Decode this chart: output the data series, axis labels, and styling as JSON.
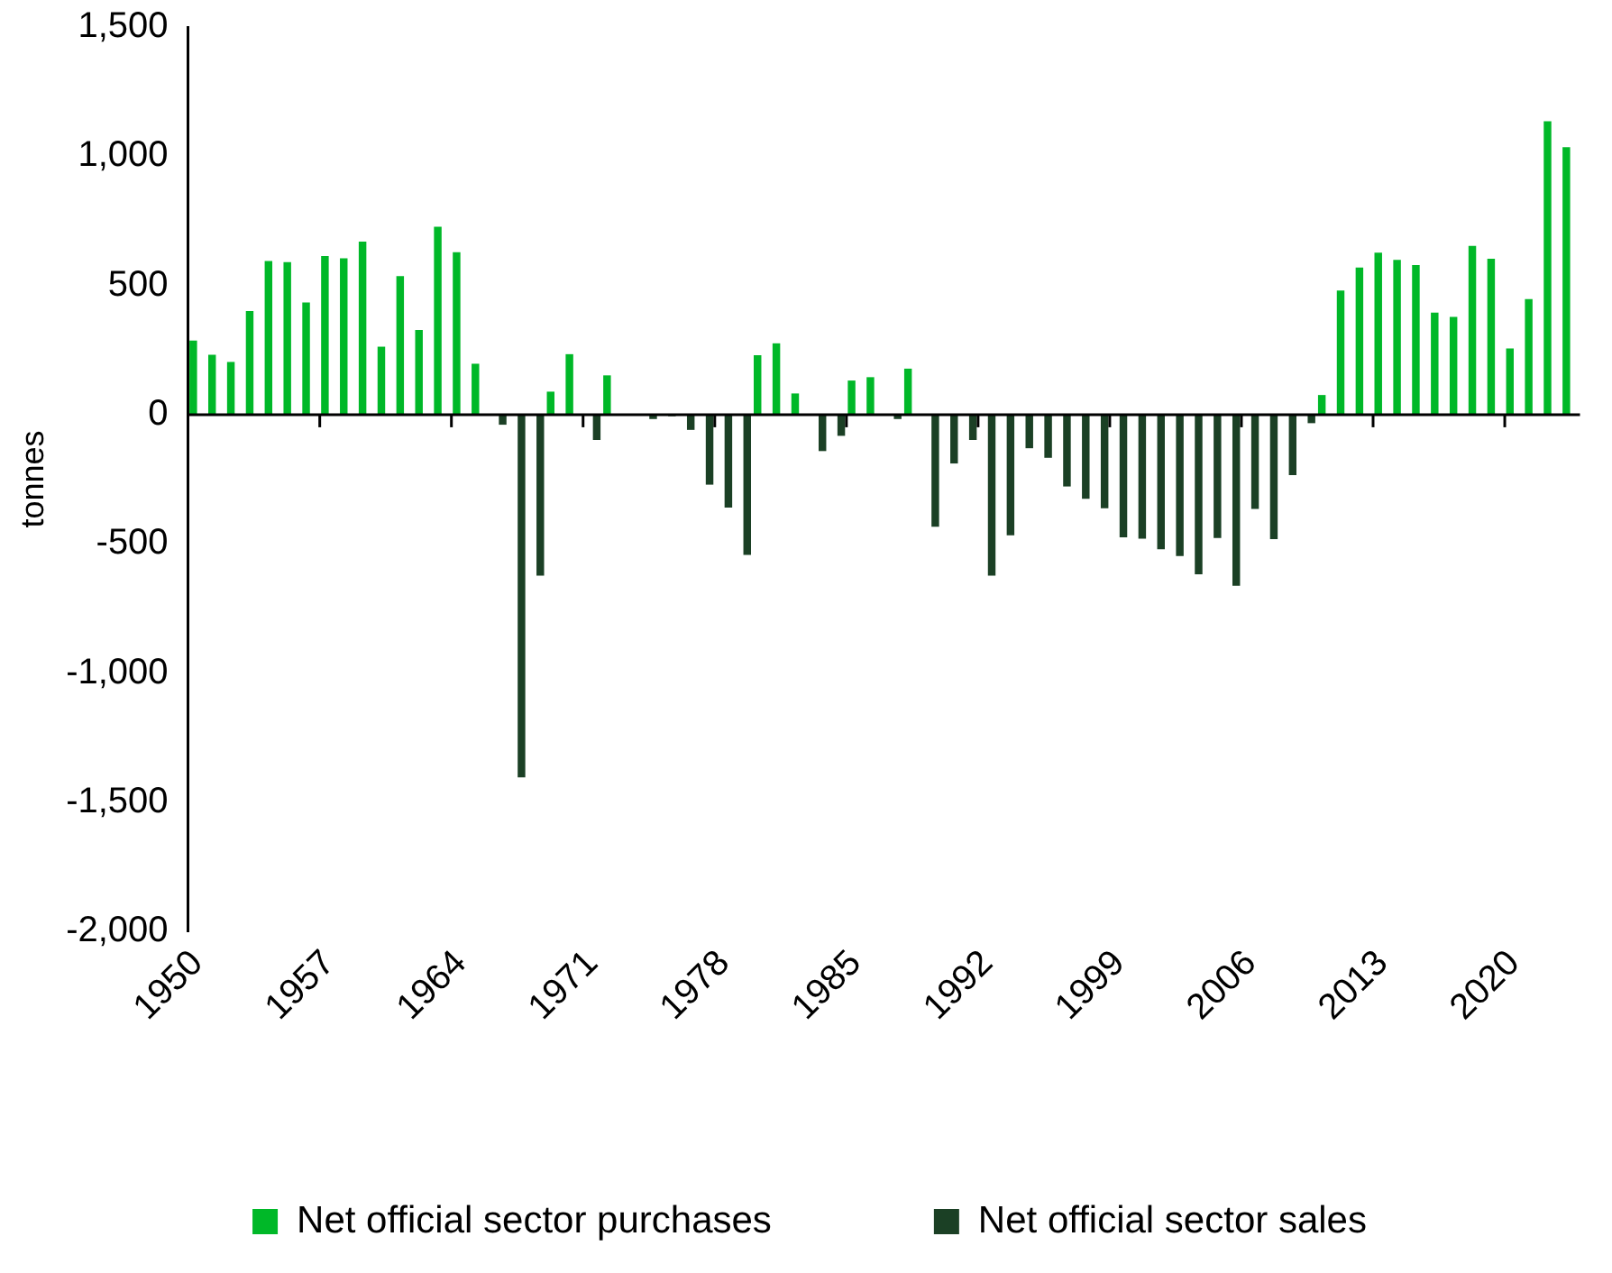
{
  "chart_data": {
    "type": "bar",
    "ylabel": "tonnes",
    "categories": [
      "1950",
      null,
      null,
      null,
      null,
      null,
      null,
      "1957",
      null,
      null,
      null,
      null,
      null,
      null,
      "1964",
      null,
      null,
      null,
      null,
      null,
      null,
      "1971",
      null,
      null,
      null,
      null,
      null,
      null,
      "1978",
      null,
      null,
      null,
      null,
      null,
      null,
      "1985",
      null,
      null,
      null,
      null,
      null,
      null,
      "1992",
      null,
      null,
      null,
      null,
      null,
      null,
      "1999",
      null,
      null,
      null,
      null,
      null,
      null,
      "2006",
      null,
      null,
      null,
      null,
      null,
      null,
      "2013",
      null,
      null,
      null,
      null,
      null,
      null,
      "2020",
      null,
      null,
      null
    ],
    "series": [
      {
        "name": "Net official sector purchases",
        "color": "#00b828",
        "values": [
          287,
          232,
          204,
          401,
          595,
          590,
          434,
          614,
          605,
          670,
          263,
          536,
          328,
          727,
          629,
          197,
          null,
          null,
          null,
          89,
          234,
          null,
          152,
          null,
          null,
          null,
          null,
          null,
          null,
          null,
          230,
          276,
          82,
          null,
          null,
          132,
          145,
          null,
          178,
          null,
          null,
          null,
          null,
          null,
          null,
          null,
          null,
          null,
          null,
          null,
          null,
          null,
          null,
          null,
          null,
          null,
          null,
          null,
          null,
          null,
          76,
          480,
          569,
          627,
          599,
          579,
          395,
          378,
          653,
          603,
          256,
          447,
          1135,
          1035
        ]
      },
      {
        "name": "Net official sector sales",
        "color": "#1b4025",
        "values": [
          null,
          null,
          null,
          null,
          null,
          null,
          null,
          null,
          null,
          null,
          null,
          null,
          null,
          null,
          null,
          null,
          -39,
          -1404,
          -623,
          null,
          null,
          -98,
          null,
          null,
          -17,
          -6,
          -59,
          -271,
          -360,
          -543,
          null,
          null,
          null,
          -141,
          -82,
          null,
          null,
          -17,
          null,
          -434,
          -189,
          -98,
          -623,
          -467,
          -130,
          -167,
          -278,
          -326,
          -362,
          -475,
          -480,
          -521,
          -547,
          -618,
          -477,
          -662,
          -365,
          -482,
          -234,
          -33,
          null,
          null,
          null,
          null,
          null,
          null,
          null,
          null,
          null,
          null,
          null,
          null,
          null,
          null
        ]
      }
    ],
    "ylim": [
      -2000,
      1500
    ],
    "yticks": [
      {
        "value": -2000,
        "label": "-2,000"
      },
      {
        "value": -1500,
        "label": "-1,500"
      },
      {
        "value": -1000,
        "label": "-1,000"
      },
      {
        "value": -500,
        "label": "-500"
      },
      0,
      {
        "value": 500,
        "label": "500"
      },
      {
        "value": 1000,
        "label": "1,000"
      },
      {
        "value": 1500,
        "label": "1,500"
      }
    ],
    "legend": "bottom"
  }
}
